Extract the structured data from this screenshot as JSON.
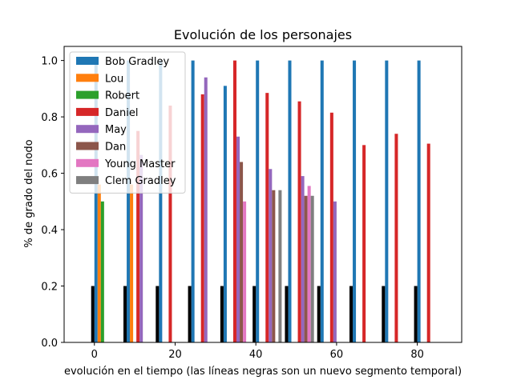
{
  "chart_data": {
    "type": "bar",
    "title": "Evolución de los personajes",
    "xlabel": "evolución en el tiempo (las líneas negras son un nuevo segmento temporal)",
    "ylabel": "% de grado del nodo",
    "xlim": [
      -7.5,
      91
    ],
    "ylim": [
      0,
      1.05
    ],
    "xticks": [
      0,
      20,
      40,
      60,
      80
    ],
    "yticks": [
      0.0,
      0.2,
      0.4,
      0.6,
      0.8,
      1.0
    ],
    "legend_position": "upper-left",
    "bar_width": 0.8,
    "separators": {
      "color": "#000000",
      "height": 0.2,
      "x": [
        -0.4,
        7.6,
        15.6,
        23.6,
        31.6,
        39.6,
        47.6,
        55.6,
        63.6,
        71.6,
        79.6
      ]
    },
    "series": [
      {
        "name": "Bob Gradley",
        "color": "#1f77b4",
        "x": [
          0.4,
          8.4,
          16.4,
          24.4,
          32.4,
          40.4,
          48.4,
          56.4,
          64.4,
          72.4,
          80.4
        ],
        "values": [
          1.0,
          1.0,
          1.0,
          1.0,
          0.91,
          1.0,
          1.0,
          1.0,
          1.0,
          1.0,
          1.0
        ]
      },
      {
        "name": "Lou",
        "color": "#ff7f0e",
        "x": [
          1.2,
          9.2
        ],
        "values": [
          0.56,
          0.56
        ]
      },
      {
        "name": "Robert",
        "color": "#2ca02c",
        "x": [
          2.0
        ],
        "values": [
          0.5
        ]
      },
      {
        "name": "Daniel",
        "color": "#d62728",
        "x": [
          10.8,
          18.8,
          26.8,
          34.8,
          42.8,
          50.8,
          58.8,
          66.8,
          74.8,
          82.8
        ],
        "values": [
          0.75,
          0.84,
          0.88,
          1.0,
          0.885,
          0.855,
          0.815,
          0.7,
          0.74,
          0.705
        ]
      },
      {
        "name": "May",
        "color": "#9467bd",
        "x": [
          11.6,
          27.6,
          35.6,
          43.6,
          51.6,
          59.6
        ],
        "values": [
          0.665,
          0.94,
          0.73,
          0.615,
          0.59,
          0.5
        ]
      },
      {
        "name": "Dan",
        "color": "#8c564b",
        "x": [
          36.4,
          44.4,
          52.4
        ],
        "values": [
          0.64,
          0.54,
          0.52
        ]
      },
      {
        "name": "Young Master",
        "color": "#e377c2",
        "x": [
          37.2,
          53.2
        ],
        "values": [
          0.5,
          0.555
        ]
      },
      {
        "name": "Clem Gradley",
        "color": "#7f7f7f",
        "x": [
          46.0,
          54.0
        ],
        "values": [
          0.54,
          0.52
        ]
      }
    ]
  }
}
